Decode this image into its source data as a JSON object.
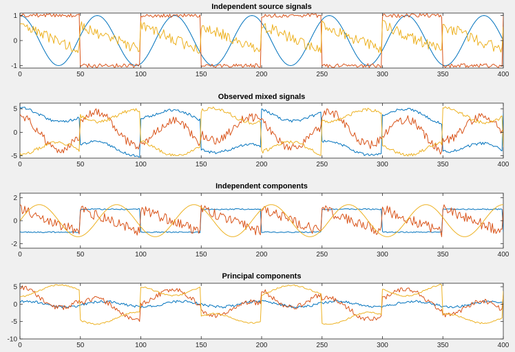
{
  "figure": {
    "colors": [
      "#0072BD",
      "#D95319",
      "#EDB120"
    ]
  },
  "chart_data": [
    {
      "type": "line",
      "title": "Independent source signals",
      "xlim": [
        0,
        400
      ],
      "ylim": [
        -1.1,
        1.1
      ],
      "xticks": [
        0,
        50,
        100,
        150,
        200,
        250,
        300,
        350,
        400
      ],
      "yticks": [
        -1,
        0,
        1
      ],
      "series": [
        {
          "kind": "sine",
          "amp": 1.0,
          "period": 64,
          "phase": 16,
          "offset": 0,
          "noise": 0,
          "color": "#0072BD",
          "seed": 1
        },
        {
          "kind": "square",
          "amp": 1.0,
          "period": 100,
          "phase": 0,
          "offset": 0,
          "noise": 0.08,
          "color": "#D95319",
          "seed": 2
        },
        {
          "kind": "sawnoise",
          "amp": 0.5,
          "period": 50,
          "phase": 0,
          "offset": 0.1,
          "noise": 0.22,
          "color": "#EDB120",
          "seed": 3
        }
      ]
    },
    {
      "type": "line",
      "title": "Observed mixed signals",
      "xlim": [
        0,
        400
      ],
      "ylim": [
        -5.5,
        6.2
      ],
      "xticks": [
        0,
        50,
        100,
        150,
        200,
        250,
        300,
        350,
        400
      ],
      "yticks": [
        -5,
        0,
        5
      ],
      "series": [
        {
          "kind": "mix",
          "w": [
            1.2,
            3.5,
            1.0
          ],
          "noise": 0.3,
          "color": "#0072BD",
          "seed": 4
        },
        {
          "kind": "mix",
          "w": [
            3.0,
            -0.6,
            1.6
          ],
          "noise": 0.9,
          "color": "#D95319",
          "seed": 5
        },
        {
          "kind": "mix",
          "w": [
            -1.4,
            -3.5,
            0.5
          ],
          "noise": 0.35,
          "color": "#EDB120",
          "seed": 6
        }
      ]
    },
    {
      "type": "line",
      "title": "Independent components",
      "xlim": [
        0,
        400
      ],
      "ylim": [
        -2.4,
        2.4
      ],
      "xticks": [
        0,
        50,
        100,
        150,
        200,
        250,
        300,
        350,
        400
      ],
      "yticks": [
        -2,
        0,
        2
      ],
      "series": [
        {
          "kind": "square",
          "amp": 1.0,
          "period": 100,
          "phase": 50,
          "offset": 0,
          "noise": 0.05,
          "color": "#0072BD",
          "seed": 7
        },
        {
          "kind": "sawnoise",
          "amp": 1.0,
          "period": 50,
          "phase": 0,
          "offset": 0,
          "noise": 0.45,
          "color": "#D95319",
          "seed": 8
        },
        {
          "kind": "sine",
          "amp": 1.4,
          "period": 64,
          "phase": 0,
          "offset": 0,
          "noise": 0,
          "color": "#EDB120",
          "seed": 9
        }
      ]
    },
    {
      "type": "line",
      "title": "Principal components",
      "xlim": [
        0,
        400
      ],
      "ylim": [
        -10,
        6
      ],
      "xticks": [
        0,
        50,
        100,
        150,
        200,
        250,
        300,
        350,
        400
      ],
      "yticks": [
        -10,
        -5,
        0,
        5
      ],
      "series": [
        {
          "kind": "sine",
          "amp": 0.8,
          "period": 64,
          "phase": 10,
          "offset": 0,
          "noise": 0.35,
          "color": "#0072BD",
          "seed": 10
        },
        {
          "kind": "mix",
          "w": [
            2.5,
            1.5,
            1.6
          ],
          "noise": 0.7,
          "color": "#D95319",
          "seed": 11
        },
        {
          "kind": "mix",
          "w": [
            -1.5,
            4.0,
            -0.6
          ],
          "noise": 0.2,
          "color": "#EDB120",
          "seed": 12
        }
      ]
    }
  ]
}
